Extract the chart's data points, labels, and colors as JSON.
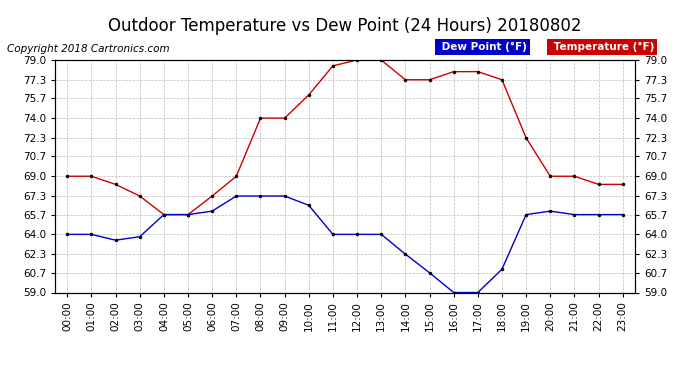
{
  "title": "Outdoor Temperature vs Dew Point (24 Hours) 20180802",
  "copyright_text": "Copyright 2018 Cartronics.com",
  "hours": [
    0,
    1,
    2,
    3,
    4,
    5,
    6,
    7,
    8,
    9,
    10,
    11,
    12,
    13,
    14,
    15,
    16,
    17,
    18,
    19,
    20,
    21,
    22,
    23
  ],
  "temperature": [
    69.0,
    69.0,
    68.3,
    67.3,
    65.7,
    65.7,
    67.3,
    69.0,
    74.0,
    74.0,
    76.0,
    78.5,
    79.0,
    79.0,
    77.3,
    77.3,
    78.0,
    78.0,
    77.3,
    72.3,
    69.0,
    69.0,
    68.3,
    68.3
  ],
  "dew_point": [
    64.0,
    64.0,
    63.5,
    63.8,
    65.7,
    65.7,
    66.0,
    67.3,
    67.3,
    67.3,
    66.5,
    64.0,
    64.0,
    64.0,
    62.3,
    60.7,
    59.0,
    59.0,
    61.0,
    65.7,
    66.0,
    65.7,
    65.7,
    65.7
  ],
  "ylim": [
    59.0,
    79.0
  ],
  "yticks": [
    59.0,
    60.7,
    62.3,
    64.0,
    65.7,
    67.3,
    69.0,
    70.7,
    72.3,
    74.0,
    75.7,
    77.3,
    79.0
  ],
  "temp_color": "#cc0000",
  "dew_color": "#0000cc",
  "grid_color": "#bbbbbb",
  "bg_color": "#ffffff",
  "legend_dew_bg": "#0000cc",
  "legend_temp_bg": "#cc0000",
  "legend_text_color": "#ffffff",
  "title_fontsize": 12,
  "tick_fontsize": 7.5,
  "copyright_fontsize": 7.5
}
